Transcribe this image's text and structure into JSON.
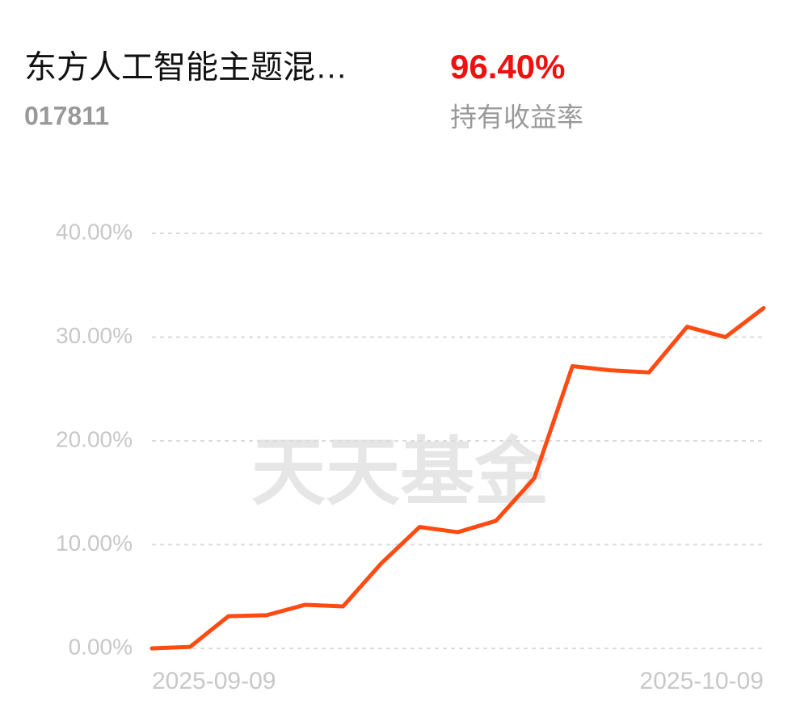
{
  "header": {
    "fund_name": "东方人工智能主题混…",
    "fund_code": "017811",
    "return_value": "96.40%",
    "return_label": "持有收益率"
  },
  "chart_data": {
    "type": "line",
    "watermark": "天天基金",
    "categories": [
      "2025-09-09",
      null,
      null,
      null,
      null,
      null,
      null,
      null,
      null,
      null,
      null,
      null,
      null,
      null,
      null,
      null,
      "2025-10-09"
    ],
    "series": [
      {
        "name": "持有收益率",
        "color": "#ff4a12",
        "values": [
          0,
          0.15,
          3.1,
          3.2,
          4.2,
          4.05,
          8.2,
          11.7,
          11.2,
          12.3,
          16.4,
          27.2,
          26.8,
          26.6,
          31.0,
          30.0,
          32.8
        ]
      }
    ],
    "ylim": [
      0,
      40
    ],
    "yticks": [
      {
        "value": 0,
        "label": "0.00%"
      },
      {
        "value": 10,
        "label": "10.00%"
      },
      {
        "value": 20,
        "label": "20.00%"
      },
      {
        "value": 30,
        "label": "30.00%"
      },
      {
        "value": 40,
        "label": "40.00%"
      }
    ],
    "grid": true
  }
}
